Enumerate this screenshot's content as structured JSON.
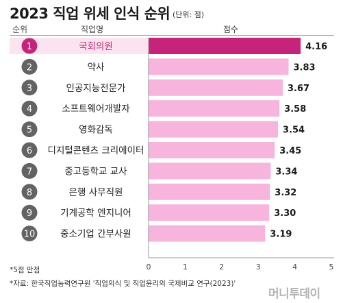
{
  "header": {
    "title": "2023 직업 위세 인식 순위",
    "unit": "(단위: 점)",
    "col_rank": "순위",
    "col_job": "직업명",
    "col_score": "점수"
  },
  "notes": {
    "scale": "*5점 만점",
    "source": "*자료: 한국직업능력연구원 '직업의식 및 직업윤리의 국제비교 연구(2023)'"
  },
  "watermark": "머니투데이",
  "colors": {
    "highlight_bar": "#c6247b",
    "bar": "#f7b4dd",
    "highlight_row_bg": "#fbe3ef",
    "highlight_circle": "#c6247b",
    "circle": "#636363",
    "highlight_text": "#c6247b"
  },
  "chart_data": {
    "type": "bar",
    "orientation": "horizontal",
    "categories": [
      "국회의원",
      "약사",
      "인공지능전문가",
      "소프트웨어개발자",
      "영화감독",
      "디지털콘텐츠 크리에이터",
      "중고등학교 교사",
      "은행 사무직원",
      "기계공학 엔지니어",
      "중소기업 간부사원"
    ],
    "ranks": [
      "1",
      "2",
      "3",
      "4",
      "5",
      "6",
      "7",
      "8",
      "9",
      "10"
    ],
    "values": [
      4.16,
      3.83,
      3.67,
      3.58,
      3.54,
      3.45,
      3.34,
      3.32,
      3.3,
      3.19
    ],
    "value_labels": [
      "4.16",
      "3.83",
      "3.67",
      "3.58",
      "3.54",
      "3.45",
      "3.34",
      "3.32",
      "3.30",
      "3.19"
    ],
    "xlim": [
      0,
      5
    ],
    "xticks": [
      "0",
      "1",
      "2",
      "3",
      "4",
      "5"
    ],
    "highlight_index": 0,
    "grid": false
  }
}
